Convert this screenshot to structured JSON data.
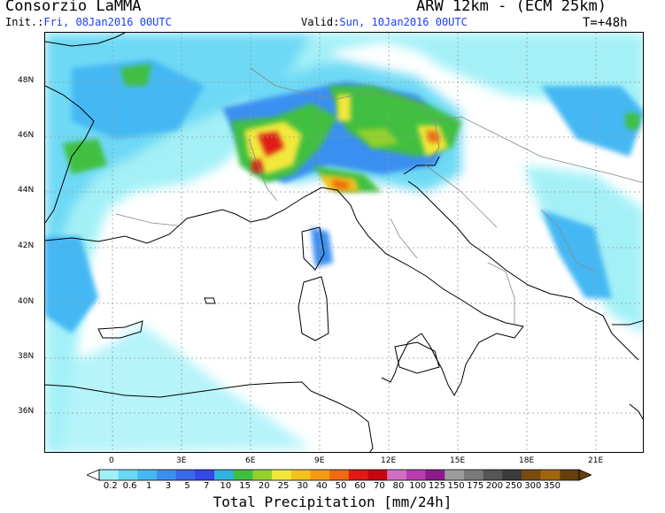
{
  "header": {
    "organization": "Consorzio LaMMA",
    "model": "ARW 12km - (ECM 25km)",
    "init_label": "Init.:",
    "init_value": "Fri, 08Jan2016 00UTC",
    "valid_label": "Valid:",
    "valid_value": "Sun, 10Jan2016 00UTC",
    "lead_time": "T=+48h"
  },
  "map": {
    "latitude_labels": [
      "48N",
      "46N",
      "44N",
      "42N",
      "40N",
      "38N",
      "36N"
    ],
    "longitude_labels": [
      "0",
      "3E",
      "6E",
      "9E",
      "12E",
      "15E",
      "18E",
      "21E"
    ],
    "colors": {
      "land_outline": "#000000",
      "border_outline": "#888888",
      "grid": "#999999",
      "background": "#ffffff"
    }
  },
  "colorbar": {
    "title": "Total Precipitation [mm/24h]",
    "labels": [
      "0.2",
      "0.6",
      "1",
      "3",
      "5",
      "7",
      "10",
      "15",
      "20",
      "25",
      "30",
      "40",
      "50",
      "60",
      "70",
      "80",
      "100",
      "125",
      "150",
      "175",
      "200",
      "250",
      "300",
      "350"
    ],
    "colors": [
      "#9ff0f7",
      "#66d8f5",
      "#45b8f3",
      "#3b8ff0",
      "#3a68ea",
      "#3348e6",
      "#2fb2e0",
      "#3fbf3f",
      "#93d22c",
      "#f2e83a",
      "#f4c21c",
      "#f59a12",
      "#ef6a10",
      "#e01a12",
      "#c8050f",
      "#d36dc4",
      "#b83cb0",
      "#8e1a8e",
      "#9c9c9c",
      "#7a7a7a",
      "#555555",
      "#3a3a3a",
      "#7a4b0d",
      "#a0660e",
      "#66400a"
    ]
  }
}
